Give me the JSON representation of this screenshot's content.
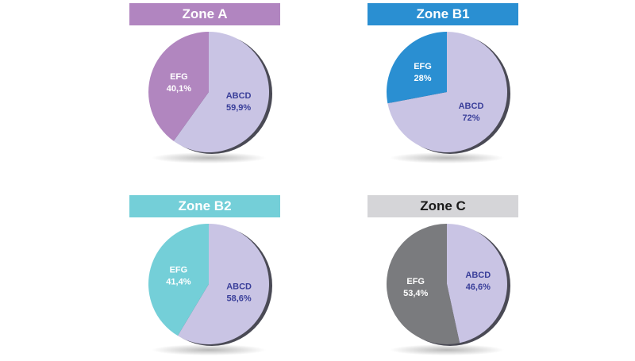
{
  "colors": {
    "abcd": "#c9c4e4",
    "label_text": "#3a3f9a"
  },
  "chart_data": [
    {
      "type": "pie",
      "title": "Zone A",
      "title_bg": "#b185c0",
      "title_fg": "#ffffff",
      "slices": [
        {
          "label": "ABCD",
          "value": 59.9,
          "text": "59,9%",
          "color": "#c9c4e4"
        },
        {
          "label": "EFG",
          "value": 40.1,
          "text": "40,1%",
          "color": "#b186bf"
        }
      ]
    },
    {
      "type": "pie",
      "title": "Zone B1",
      "title_bg": "#2a8fd2",
      "title_fg": "#ffffff",
      "slices": [
        {
          "label": "ABCD",
          "value": 72,
          "text": "72%",
          "color": "#c9c4e4"
        },
        {
          "label": "EFG",
          "value": 28,
          "text": "28%",
          "color": "#2a8fd2"
        }
      ]
    },
    {
      "type": "pie",
      "title": "Zone B2",
      "title_bg": "#74cfd8",
      "title_fg": "#ffffff",
      "slices": [
        {
          "label": "ABCD",
          "value": 58.6,
          "text": "58,6%",
          "color": "#c9c4e4"
        },
        {
          "label": "EFG",
          "value": 41.4,
          "text": "41,4%",
          "color": "#74cfd8"
        }
      ]
    },
    {
      "type": "pie",
      "title": "Zone C",
      "title_bg": "#d5d5d8",
      "title_fg": "#1a1a1a",
      "slices": [
        {
          "label": "ABCD",
          "value": 46.6,
          "text": "46,6%",
          "color": "#c9c4e4"
        },
        {
          "label": "EFG",
          "value": 53.4,
          "text": "53,4%",
          "color": "#7a7b7e"
        }
      ]
    }
  ]
}
